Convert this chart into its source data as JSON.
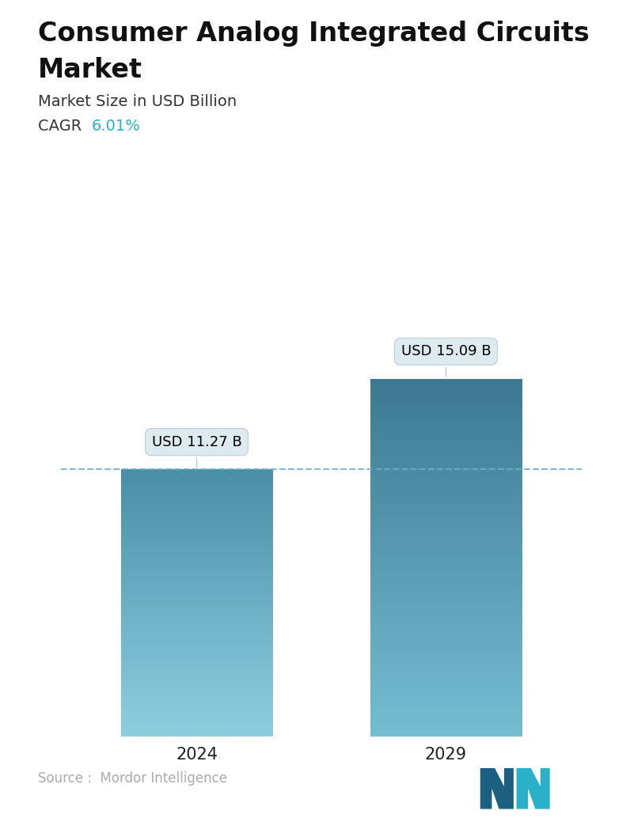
{
  "title_line1": "Consumer Analog Integrated Circuits",
  "title_line2": "Market",
  "subtitle": "Market Size in USD Billion",
  "cagr_label": "CAGR  ",
  "cagr_value": "6.01%",
  "cagr_color": "#2ab0c8",
  "categories": [
    "2024",
    "2029"
  ],
  "values": [
    11.27,
    15.09
  ],
  "bar_labels": [
    "USD 11.27 B",
    "USD 15.09 B"
  ],
  "bar_color_top": [
    "#4a8fa8",
    "#3d7a92"
  ],
  "bar_color_bottom": [
    "#8ecfdf",
    "#76bdd0"
  ],
  "dashed_line_color": "#6aafc4",
  "dashed_line_value": 11.27,
  "source_text": "Source :  Mordor Intelligence",
  "source_color": "#aaaaaa",
  "background_color": "#ffffff",
  "title_fontsize": 24,
  "subtitle_fontsize": 14,
  "cagr_fontsize": 14,
  "bar_label_fontsize": 13,
  "tick_fontsize": 15,
  "source_fontsize": 12,
  "ylim": [
    0,
    19
  ],
  "bar_width": 0.28
}
